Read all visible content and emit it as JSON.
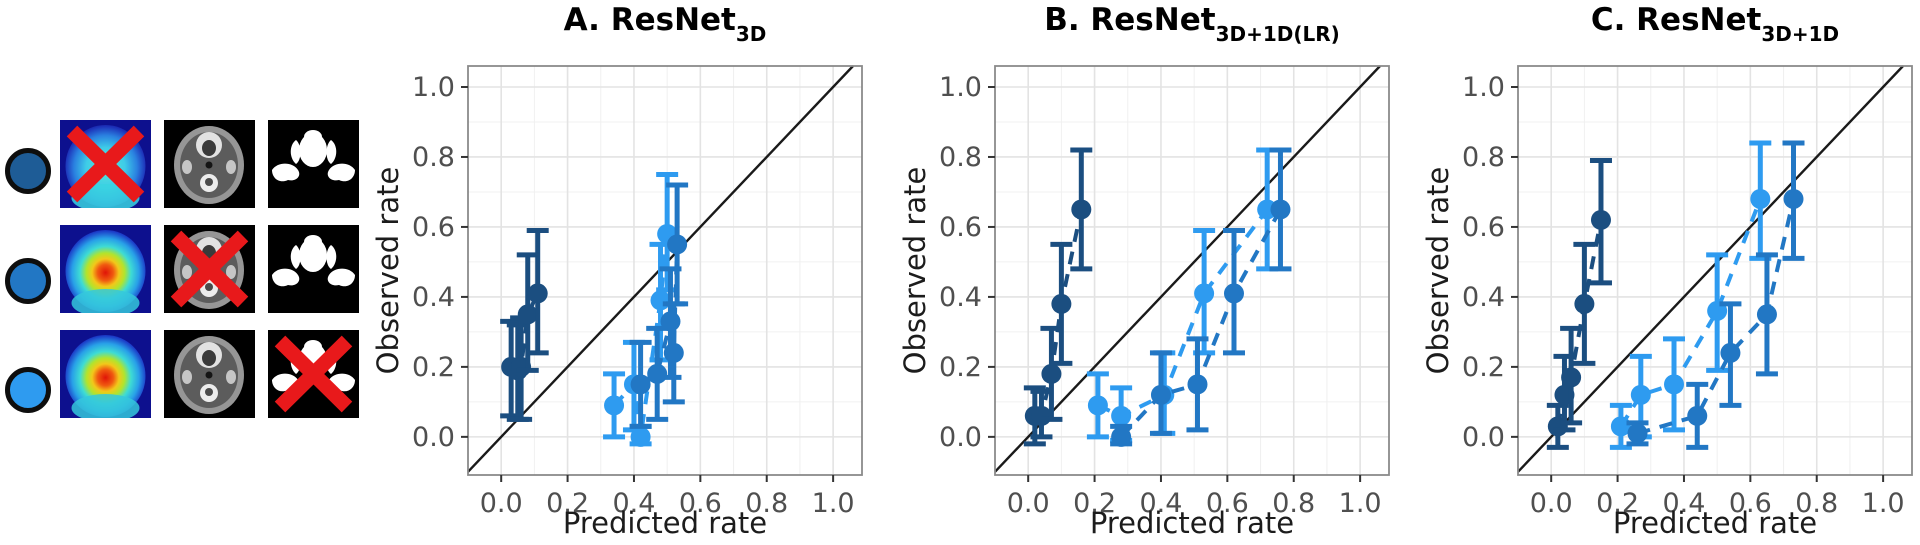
{
  "legend": {
    "marker_border_color": "#0e0e0e",
    "cross_color": "#e8191b",
    "columns": [
      "pet-heatmap",
      "ct-scan",
      "segmentation-mask"
    ],
    "rows": [
      {
        "name": "without-pet",
        "marker_color": "#1e5c96",
        "crossed_column": 0
      },
      {
        "name": "without-ct",
        "marker_color": "#2277c4",
        "crossed_column": 1
      },
      {
        "name": "without-mask",
        "marker_color": "#2e9bf0",
        "crossed_column": 2
      }
    ]
  },
  "chart_data": [
    {
      "id": "A",
      "type": "scatter",
      "title": "A. ResNet",
      "title_subscript": "3D",
      "xlabel": "Predicted rate",
      "ylabel": "Observed rate",
      "xlim": [
        -0.1,
        1.087
      ],
      "ylim": [
        -0.109,
        1.06
      ],
      "xticks": [
        0.0,
        0.2,
        0.4,
        0.6,
        0.8,
        1.0
      ],
      "yticks": [
        0.0,
        0.2,
        0.4,
        0.6,
        0.8,
        1.0
      ],
      "grid": true,
      "identity_line": true,
      "series": [
        {
          "name": "without-pet",
          "color": "#1b4e80",
          "x": [
            0.03,
            0.05,
            0.06,
            0.08,
            0.11
          ],
          "y": [
            0.2,
            0.19,
            0.2,
            0.35,
            0.41
          ],
          "y_lo": [
            0.06,
            0.05,
            0.05,
            0.19,
            0.24
          ],
          "y_hi": [
            0.33,
            0.32,
            0.34,
            0.52,
            0.59
          ]
        },
        {
          "name": "without-ct",
          "color": "#2277c4",
          "x": [
            0.42,
            0.47,
            0.51,
            0.52,
            0.53
          ],
          "y": [
            0.15,
            0.18,
            0.33,
            0.24,
            0.55
          ],
          "y_lo": [
            0.03,
            0.05,
            0.17,
            0.1,
            0.38
          ],
          "y_hi": [
            0.27,
            0.31,
            0.48,
            0.38,
            0.72
          ]
        },
        {
          "name": "without-mask",
          "color": "#2e9bf0",
          "x": [
            0.34,
            0.4,
            0.42,
            0.48,
            0.5
          ],
          "y": [
            0.09,
            0.15,
            0.0,
            0.39,
            0.58
          ],
          "y_lo": [
            0.0,
            0.02,
            -0.02,
            0.22,
            0.42
          ],
          "y_hi": [
            0.18,
            0.27,
            0.03,
            0.55,
            0.75
          ]
        }
      ]
    },
    {
      "id": "B",
      "type": "scatter",
      "title": "B. ResNet",
      "title_subscript": "3D+1D(LR)",
      "xlabel": "Predicted rate",
      "ylabel": "Observed rate",
      "xlim": [
        -0.1,
        1.087
      ],
      "ylim": [
        -0.109,
        1.06
      ],
      "xticks": [
        0.0,
        0.2,
        0.4,
        0.6,
        0.8,
        1.0
      ],
      "yticks": [
        0.0,
        0.2,
        0.4,
        0.6,
        0.8,
        1.0
      ],
      "grid": true,
      "identity_line": true,
      "series": [
        {
          "name": "without-pet",
          "color": "#1b4e80",
          "x": [
            0.02,
            0.04,
            0.07,
            0.1,
            0.16
          ],
          "y": [
            0.06,
            0.06,
            0.18,
            0.38,
            0.65
          ],
          "y_lo": [
            -0.02,
            0.0,
            0.05,
            0.21,
            0.48
          ],
          "y_hi": [
            0.14,
            0.13,
            0.31,
            0.55,
            0.82
          ]
        },
        {
          "name": "without-ct",
          "color": "#2277c4",
          "x": [
            0.28,
            0.4,
            0.51,
            0.62,
            0.76
          ],
          "y": [
            0.0,
            0.12,
            0.15,
            0.41,
            0.65
          ],
          "y_lo": [
            -0.02,
            0.01,
            0.02,
            0.24,
            0.48
          ],
          "y_hi": [
            0.03,
            0.24,
            0.28,
            0.59,
            0.82
          ]
        },
        {
          "name": "without-mask",
          "color": "#2e9bf0",
          "x": [
            0.21,
            0.28,
            0.41,
            0.53,
            0.72
          ],
          "y": [
            0.09,
            0.06,
            0.12,
            0.41,
            0.65
          ],
          "y_lo": [
            0.0,
            -0.01,
            0.01,
            0.24,
            0.48
          ],
          "y_hi": [
            0.18,
            0.14,
            0.24,
            0.59,
            0.82
          ]
        }
      ]
    },
    {
      "id": "C",
      "type": "scatter",
      "title": "C. ResNet",
      "title_subscript": "3D+1D",
      "xlabel": "Predicted rate",
      "ylabel": "Observed rate",
      "xlim": [
        -0.1,
        1.087
      ],
      "ylim": [
        -0.109,
        1.06
      ],
      "xticks": [
        0.0,
        0.2,
        0.4,
        0.6,
        0.8,
        1.0
      ],
      "yticks": [
        0.0,
        0.2,
        0.4,
        0.6,
        0.8,
        1.0
      ],
      "grid": true,
      "identity_line": true,
      "series": [
        {
          "name": "without-pet",
          "color": "#1b4e80",
          "x": [
            0.02,
            0.04,
            0.06,
            0.1,
            0.15
          ],
          "y": [
            0.03,
            0.12,
            0.17,
            0.38,
            0.62
          ],
          "y_lo": [
            -0.03,
            0.02,
            0.04,
            0.21,
            0.44
          ],
          "y_hi": [
            0.09,
            0.23,
            0.31,
            0.55,
            0.79
          ]
        },
        {
          "name": "without-ct",
          "color": "#2277c4",
          "x": [
            0.26,
            0.44,
            0.54,
            0.65,
            0.73
          ],
          "y": [
            0.01,
            0.06,
            0.24,
            0.35,
            0.68
          ],
          "y_lo": [
            -0.02,
            -0.03,
            0.09,
            0.18,
            0.51
          ],
          "y_hi": [
            0.04,
            0.15,
            0.38,
            0.52,
            0.84
          ]
        },
        {
          "name": "without-mask",
          "color": "#2e9bf0",
          "x": [
            0.21,
            0.27,
            0.37,
            0.5,
            0.63
          ],
          "y": [
            0.03,
            0.12,
            0.15,
            0.36,
            0.68
          ],
          "y_lo": [
            -0.03,
            0.0,
            0.02,
            0.19,
            0.51
          ],
          "y_hi": [
            0.09,
            0.23,
            0.28,
            0.52,
            0.84
          ]
        }
      ]
    }
  ],
  "style": {
    "grid_major_color": "#e3e3e3",
    "grid_minor_color": "#f0f0f0",
    "panel_border_color": "#8a8a8a",
    "identity_line_color": "#1a1a1a",
    "tick_label_color": "#4f4f4f",
    "axis_label_color": "#1c1c1c"
  }
}
